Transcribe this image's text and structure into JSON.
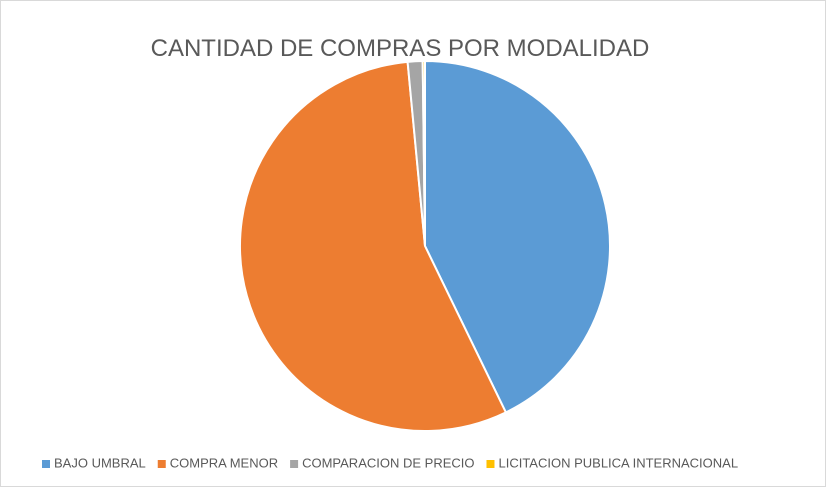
{
  "chart_data": {
    "type": "pie",
    "title": "CANTIDAD DE COMPRAS POR MODALIDAD",
    "categories": [
      "BAJO UMBRAL",
      "COMPRA MENOR",
      "COMPARACION DE PRECIO",
      "LICITACION PUBLICA INTERNACIONAL"
    ],
    "values": [
      42.8,
      55.7,
      1.3,
      0.2
    ],
    "colors": [
      "#5b9bd5",
      "#ed7d31",
      "#a5a5a5",
      "#ffc000"
    ],
    "legend": "bottom"
  }
}
